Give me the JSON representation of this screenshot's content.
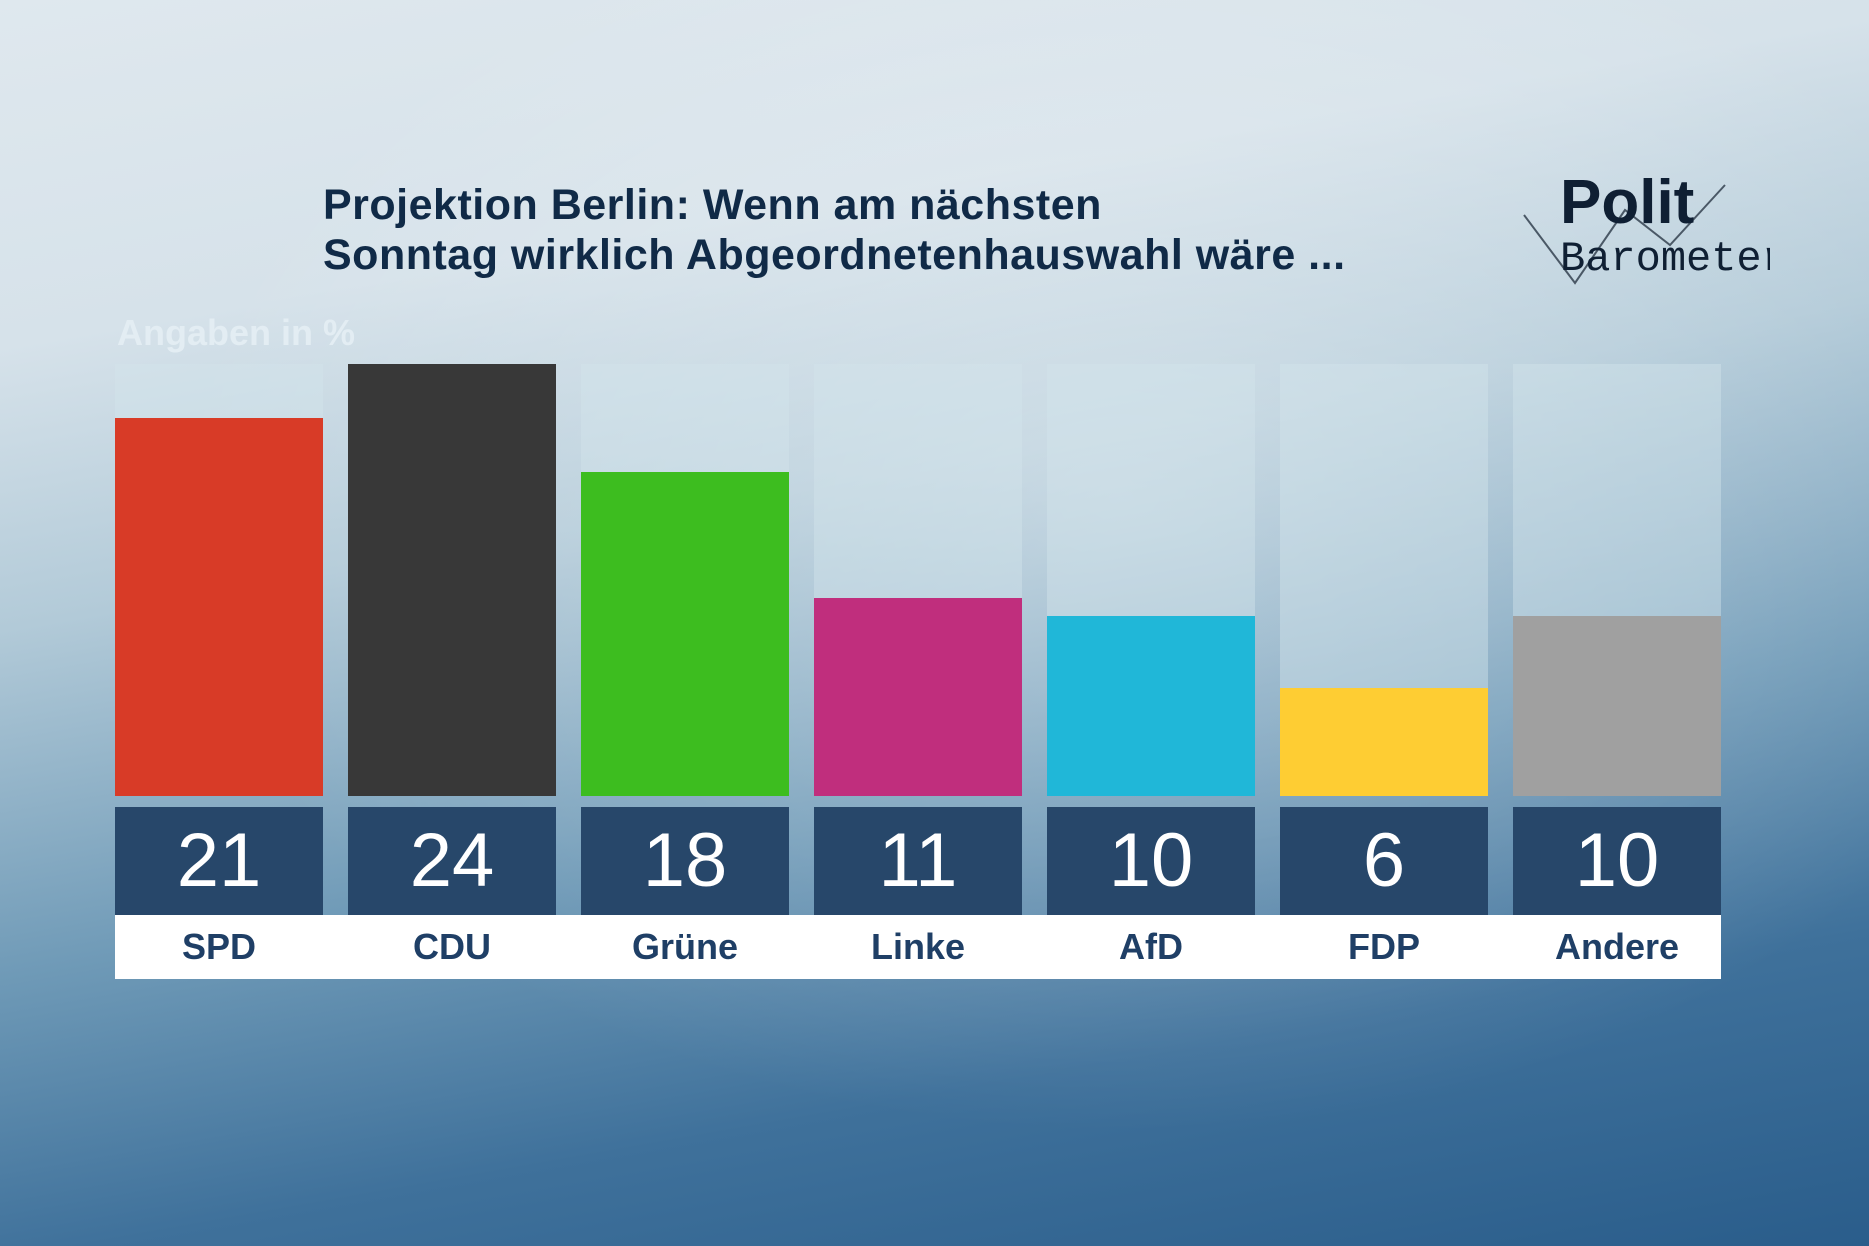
{
  "chart_data": {
    "type": "bar",
    "title": "Projektion Berlin: Wenn am nächsten Sonntag wirklich Abgeordnetenhauswahl wäre ...",
    "title_lines": [
      "Projektion Berlin: Wenn am nächsten",
      "Sonntag wirklich Abgeordnetenhauswahl wäre ..."
    ],
    "ylabel": "Angaben in %",
    "categories": [
      "SPD",
      "CDU",
      "Grüne",
      "Linke",
      "AfD",
      "FDP",
      "Andere"
    ],
    "values": [
      21,
      24,
      18,
      11,
      10,
      6,
      10
    ],
    "colors": [
      "#d83b27",
      "#383838",
      "#3dbd1f",
      "#c02e7d",
      "#20b7d8",
      "#fecd33",
      "#a0a0a0"
    ],
    "ylim": [
      0,
      24
    ]
  },
  "logo": {
    "line1": "Polit",
    "line2": "Barometer"
  }
}
